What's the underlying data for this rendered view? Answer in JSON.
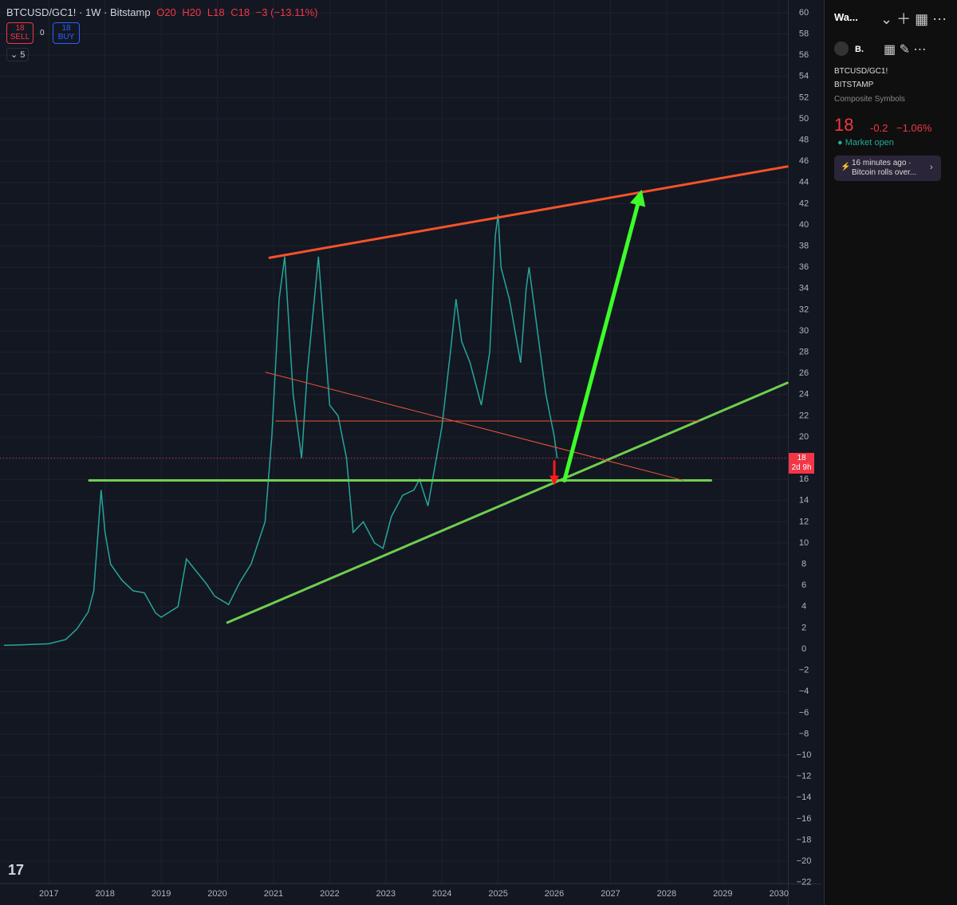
{
  "header": {
    "symbol": "BTCUSD/GC1! · 1W · Bitstamp",
    "ohlc": [
      "O20",
      "H20",
      "L18",
      "C18",
      "−3 (−13.11%)"
    ],
    "sell_price": "18",
    "sell": "SELL",
    "spread": "0",
    "buy_price": "18",
    "buy": "BUY",
    "indicators": "5"
  },
  "price_label": {
    "value": "18",
    "countdown": "2d 9h"
  },
  "sidebar": {
    "watchlist": "Wa...",
    "symbol_short": "B.",
    "symbol": "BTCUSD/GC1!",
    "exchange": "BITSTAMP",
    "kind": "Composite Symbols",
    "price": "18",
    "change": "-0.2",
    "change_pct": "−1.06%",
    "status": "Market open",
    "news_time": "16 minutes ago ·",
    "news_title": "Bitcoin rolls over..."
  },
  "chart_data": {
    "type": "line",
    "color": "#26a69a",
    "x": [
      2016.2,
      2016.5,
      2017.0,
      2017.3,
      2017.5,
      2017.7,
      2017.8,
      2017.93,
      2018.0,
      2018.1,
      2018.3,
      2018.5,
      2018.7,
      2018.9,
      2019.0,
      2019.3,
      2019.45,
      2019.6,
      2019.8,
      2019.95,
      2020.2,
      2020.4,
      2020.6,
      2020.85,
      2020.97,
      2021.1,
      2021.2,
      2021.35,
      2021.5,
      2021.6,
      2021.8,
      2021.9,
      2022.0,
      2022.15,
      2022.3,
      2022.42,
      2022.6,
      2022.8,
      2022.95,
      2023.1,
      2023.3,
      2023.5,
      2023.6,
      2023.75,
      2023.9,
      2024.0,
      2024.15,
      2024.25,
      2024.35,
      2024.5,
      2024.7,
      2024.85,
      2024.95,
      2025.0,
      2025.05,
      2025.2,
      2025.4,
      2025.5,
      2025.55,
      2025.7,
      2025.85,
      2026.0,
      2026.05
    ],
    "values": [
      0.35,
      0.4,
      0.5,
      0.9,
      1.9,
      3.5,
      5.5,
      15,
      11,
      8,
      6.5,
      5.5,
      5.3,
      3.4,
      3,
      4,
      8.5,
      7.5,
      6.2,
      5,
      4.2,
      6.3,
      8,
      12,
      20,
      33,
      37,
      24,
      18,
      26,
      37,
      30,
      23,
      22,
      18,
      11,
      12,
      10,
      9.5,
      12.5,
      14.5,
      15,
      16,
      13.5,
      18,
      21,
      28,
      33,
      29,
      27,
      23,
      28,
      39,
      41,
      36,
      33,
      27,
      34,
      36,
      30,
      24,
      20,
      18
    ],
    "xlim": [
      2016.13,
      2030.16
    ],
    "ylim": [
      -22.1,
      61.2
    ],
    "xticks": [
      2017,
      2018,
      2019,
      2020,
      2021,
      2022,
      2023,
      2024,
      2025,
      2026,
      2027,
      2028,
      2029,
      2030
    ],
    "yticks": [
      60,
      58,
      56,
      54,
      52,
      50,
      48,
      46,
      44,
      42,
      40,
      38,
      36,
      34,
      32,
      30,
      28,
      26,
      24,
      22,
      20,
      18,
      16,
      14,
      12,
      10,
      8,
      6,
      4,
      2,
      0,
      {
        "value": -2,
        "label": "−2"
      },
      {
        "value": -4,
        "label": "−4"
      },
      {
        "value": -6,
        "label": "−6"
      },
      {
        "value": -8,
        "label": "−8"
      },
      {
        "value": -10,
        "label": "−10"
      },
      {
        "value": -12,
        "label": "−12"
      },
      {
        "value": -14,
        "label": "−14"
      },
      {
        "value": -16,
        "label": "−16"
      },
      {
        "value": -18,
        "label": "−18"
      },
      {
        "value": -20,
        "label": "−20"
      },
      {
        "value": -22,
        "label": "−22"
      }
    ],
    "grid": true,
    "current": 18,
    "drawings": [
      {
        "color": "#f7522b",
        "width": 3,
        "from": [
          2020.93,
          36.9
        ],
        "to": [
          2030.15,
          45.5
        ]
      },
      {
        "color": "#6fcf4f",
        "width": 3,
        "from": [
          2017.72,
          15.9
        ],
        "to": [
          2028.79,
          15.9
        ]
      },
      {
        "color": "#6fcf4f",
        "width": 3,
        "from": [
          2020.18,
          2.5
        ],
        "to": [
          2030.15,
          25.1
        ]
      },
      {
        "color": "#e8553a",
        "width": 1,
        "from": [
          2020.86,
          26.1
        ],
        "to": [
          2028.3,
          15.9
        ]
      },
      {
        "color": "#e8553a",
        "width": 1,
        "from": [
          2021.04,
          21.5
        ],
        "to": [
          2028.6,
          21.5
        ]
      },
      {
        "color": "#3cff2a",
        "width": 5,
        "arrow": true,
        "from": [
          2026.18,
          15.9
        ],
        "to": [
          2027.52,
          42.6
        ]
      },
      {
        "color": "#ff1a1a",
        "width": 3,
        "arrow": true,
        "from": [
          2026.0,
          17.7
        ],
        "to": [
          2026.0,
          15.9
        ]
      }
    ]
  }
}
